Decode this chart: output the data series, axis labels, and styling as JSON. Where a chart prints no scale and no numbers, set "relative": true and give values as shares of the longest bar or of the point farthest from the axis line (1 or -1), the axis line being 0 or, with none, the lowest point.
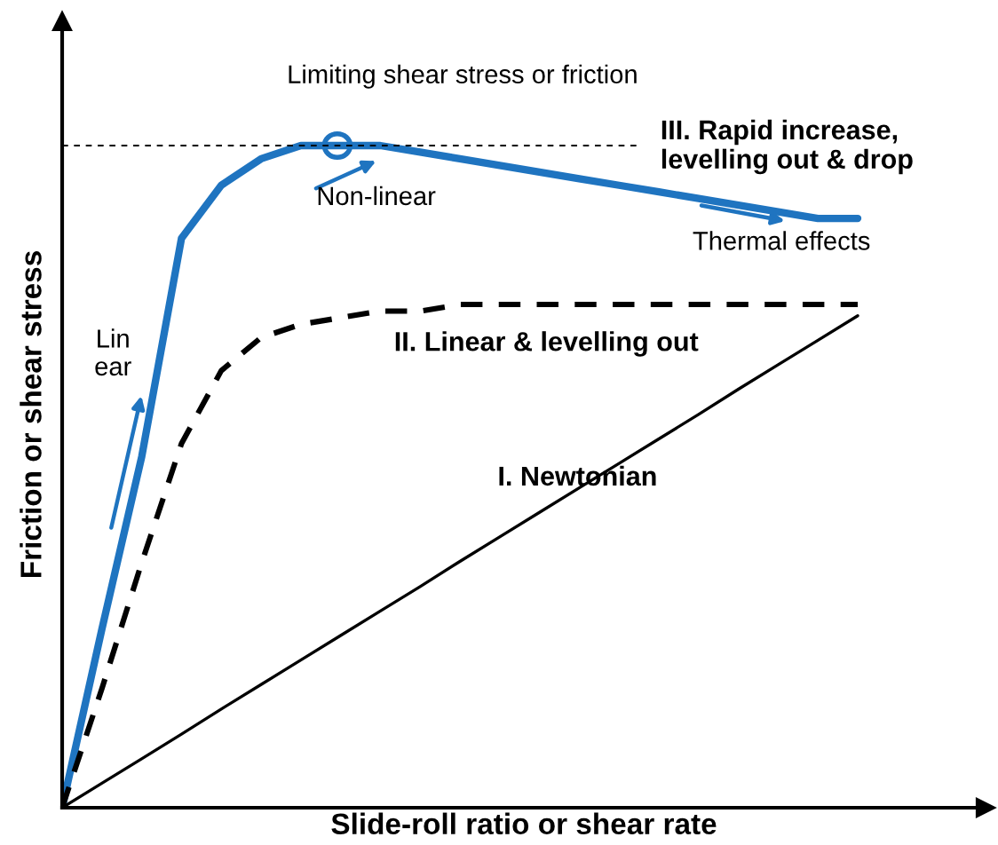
{
  "chart_data": {
    "type": "line",
    "relative": true,
    "xlabel": "Slide-roll ratio or shear rate",
    "ylabel": "Friction or shear stress",
    "tick_labels": false,
    "legend": false,
    "categories": [
      null,
      null,
      null,
      null,
      null,
      null,
      null,
      null,
      null,
      null,
      null,
      null,
      null,
      null,
      null,
      null,
      null,
      null,
      null,
      null,
      null
    ],
    "series": [
      {
        "name": "III. Rapid increase,\nlevelling out & drop",
        "color": "#1f74c0",
        "line_style": "solid",
        "values": [
          0,
          0.27,
          0.53,
          0.86,
          0.94,
          0.98,
          1.0,
          1.0,
          1.0,
          0.99,
          0.98,
          0.97,
          0.96,
          0.95,
          0.94,
          0.93,
          0.92,
          0.91,
          0.9,
          0.89,
          0.89
        ]
      },
      {
        "name": "II. Linear & levelling out",
        "color": "#000000",
        "line_style": "dashed",
        "values": [
          0,
          0.18,
          0.37,
          0.55,
          0.66,
          0.71,
          0.73,
          0.74,
          0.75,
          0.75,
          0.76,
          0.76,
          0.76,
          0.76,
          0.76,
          0.76,
          0.76,
          0.76,
          0.76,
          0.76,
          0.76
        ]
      },
      {
        "name": "I. Newtonian",
        "color": "#000000",
        "line_style": "solid",
        "values": [
          0,
          0.037,
          0.074,
          0.111,
          0.149,
          0.186,
          0.223,
          0.26,
          0.297,
          0.334,
          0.372,
          0.409,
          0.446,
          0.483,
          0.52,
          0.557,
          0.594,
          0.632,
          0.669,
          0.706,
          0.743
        ]
      }
    ],
    "ref_lines": [
      {
        "axis": "y",
        "value": 1,
        "label": "Limiting shear stress or friction",
        "color": "#000000",
        "line_style": "dotted"
      }
    ],
    "annotations": [
      "Non-linear",
      "Thermal effects",
      "Lin\near"
    ]
  }
}
